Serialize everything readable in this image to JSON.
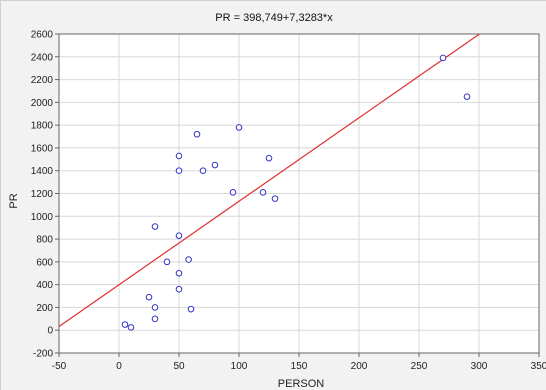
{
  "chart_data": {
    "type": "scatter",
    "title": "PR = 398,749+7,3283*x",
    "xlabel": "PERSON",
    "ylabel": "PR",
    "xlim": [
      -50,
      350
    ],
    "ylim": [
      -200,
      2600
    ],
    "x_ticks": [
      -50,
      0,
      50,
      100,
      150,
      200,
      250,
      300,
      350
    ],
    "y_ticks": [
      -200,
      0,
      200,
      400,
      600,
      800,
      1000,
      1200,
      1400,
      1600,
      1800,
      2000,
      2200,
      2400,
      2600
    ],
    "grid": true,
    "points": [
      {
        "x": 5,
        "y": 50
      },
      {
        "x": 10,
        "y": 25
      },
      {
        "x": 25,
        "y": 290
      },
      {
        "x": 30,
        "y": 200
      },
      {
        "x": 30,
        "y": 100
      },
      {
        "x": 30,
        "y": 910
      },
      {
        "x": 40,
        "y": 600
      },
      {
        "x": 50,
        "y": 1530
      },
      {
        "x": 50,
        "y": 1400
      },
      {
        "x": 50,
        "y": 830
      },
      {
        "x": 50,
        "y": 500
      },
      {
        "x": 50,
        "y": 360
      },
      {
        "x": 58,
        "y": 620
      },
      {
        "x": 60,
        "y": 185
      },
      {
        "x": 65,
        "y": 1720
      },
      {
        "x": 70,
        "y": 1400
      },
      {
        "x": 80,
        "y": 1450
      },
      {
        "x": 95,
        "y": 1210
      },
      {
        "x": 100,
        "y": 1780
      },
      {
        "x": 120,
        "y": 1210
      },
      {
        "x": 125,
        "y": 1510
      },
      {
        "x": 130,
        "y": 1155
      },
      {
        "x": 270,
        "y": 2390
      },
      {
        "x": 290,
        "y": 2050
      }
    ],
    "regression": {
      "intercept": 398.749,
      "slope": 7.3283
    },
    "colors": {
      "points": "#3333cc",
      "line": "#e03030",
      "grid": "#d8d8d8",
      "plot_bg": "#ffffff"
    }
  }
}
